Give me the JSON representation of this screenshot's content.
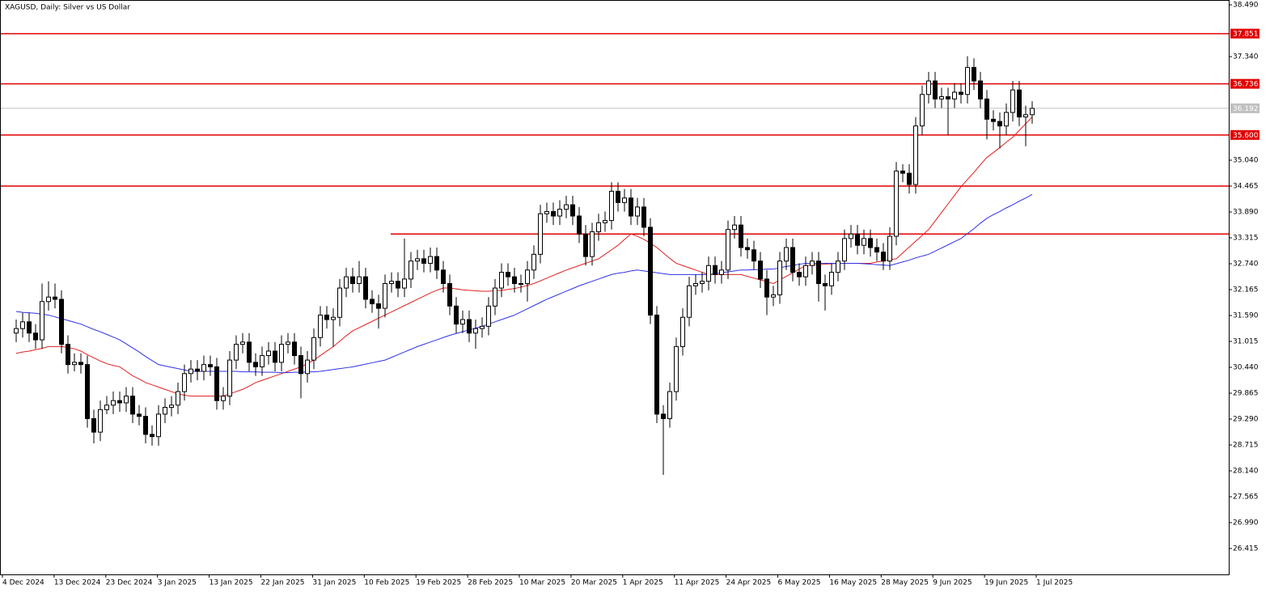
{
  "chart_data": {
    "type": "candlestick",
    "title": "XAGUSD, Daily:  Silver vs US Dollar",
    "ylim": [
      25.84,
      38.598
    ],
    "yticks": [
      {
        "value": 38.49,
        "label": "38.490"
      },
      {
        "value": 37.34,
        "label": "37.340"
      },
      {
        "value": 35.04,
        "label": "35.040"
      },
      {
        "value": 34.465,
        "label": "34.465"
      },
      {
        "value": 33.89,
        "label": "33.890"
      },
      {
        "value": 33.315,
        "label": "33.315"
      },
      {
        "value": 32.74,
        "label": "32.740"
      },
      {
        "value": 32.165,
        "label": "32.165"
      },
      {
        "value": 31.59,
        "label": "31.590"
      },
      {
        "value": 31.015,
        "label": "31.015"
      },
      {
        "value": 30.44,
        "label": "30.440"
      },
      {
        "value": 29.865,
        "label": "29.865"
      },
      {
        "value": 29.29,
        "label": "29.290"
      },
      {
        "value": 28.715,
        "label": "28.715"
      },
      {
        "value": 28.14,
        "label": "28.140"
      },
      {
        "value": 27.565,
        "label": "27.565"
      },
      {
        "value": 26.99,
        "label": "26.990"
      },
      {
        "value": 26.415,
        "label": "26.415"
      }
    ],
    "xlabels": [
      "4 Dec 2024",
      "13 Dec 2024",
      "23 Dec 2024",
      "3 Jan 2025",
      "13 Jan 2025",
      "22 Jan 2025",
      "31 Jan 2025",
      "10 Feb 2025",
      "19 Feb 2025",
      "28 Feb 2025",
      "10 Mar 2025",
      "20 Mar 2025",
      "1 Apr 2025",
      "11 Apr 2025",
      "24 Apr 2025",
      "6 May 2025",
      "16 May 2025",
      "28 May 2025",
      "9 Jun 2025",
      "19 Jun 2025",
      "1 Jul 2025"
    ],
    "levels": [
      {
        "value": 37.851,
        "label": "37.851",
        "color": "#e00000"
      },
      {
        "value": 36.736,
        "label": "36.736",
        "color": "#e00000"
      },
      {
        "value": 35.6,
        "label": "35.600",
        "color": "#e00000"
      },
      {
        "value": 34.465,
        "color": "#e00000"
      }
    ],
    "partial_level": {
      "value": 33.4,
      "color": "#e00000"
    },
    "current_price": {
      "value": 36.192,
      "label": "36.192",
      "color": "#c0c0c0"
    },
    "open": [
      31.2,
      31.3,
      31.45,
      31.2,
      31.05,
      31.9,
      32.0,
      31.95,
      30.95,
      30.5,
      30.55,
      30.5,
      29.3,
      29.0,
      29.5,
      29.6,
      29.7,
      29.65,
      29.8,
      29.4,
      29.35,
      28.95,
      28.9,
      29.4,
      29.55,
      29.6,
      29.9,
      30.3,
      30.4,
      30.35,
      30.5,
      30.45,
      29.7,
      29.8,
      30.6,
      30.95,
      31.0,
      30.55,
      30.45,
      30.7,
      30.8,
      30.55,
      30.95,
      31.0,
      30.7,
      30.3,
      30.6,
      31.1,
      31.6,
      31.5,
      31.55,
      32.2,
      32.45,
      32.3,
      32.45,
      31.95,
      31.85,
      31.75,
      32.3,
      32.35,
      32.2,
      32.4,
      32.8,
      32.85,
      32.75,
      32.9,
      32.6,
      32.3,
      31.8,
      31.4,
      31.5,
      31.2,
      31.3,
      31.35,
      31.8,
      32.2,
      32.55,
      32.45,
      32.3,
      32.3,
      32.6,
      32.95,
      33.85,
      33.9,
      33.8,
      33.95,
      34.05,
      33.8,
      33.4,
      32.9,
      33.45,
      33.65,
      33.7,
      34.35,
      34.1,
      34.2,
      33.8,
      34.0,
      33.55,
      31.6,
      29.4,
      29.3,
      29.9,
      30.9,
      31.55,
      32.25,
      32.3,
      32.35,
      32.7,
      32.5,
      32.6,
      33.5,
      33.6,
      33.1,
      33.05,
      32.8,
      32.4,
      32.0,
      32.05,
      32.8,
      33.1,
      32.55,
      32.45,
      32.7,
      32.8,
      32.3,
      32.25,
      32.55,
      32.8,
      33.3,
      33.4,
      33.15,
      33.3,
      33.1,
      33.0,
      32.8,
      33.35,
      34.8,
      34.75,
      34.5,
      35.8,
      36.5,
      36.8,
      36.4,
      36.45,
      36.4,
      36.55,
      36.5,
      37.1,
      36.8,
      36.4,
      35.95,
      35.9,
      35.8,
      36.1,
      36.6,
      36.0,
      36.05
    ],
    "high": [
      31.5,
      31.65,
      31.65,
      31.4,
      32.3,
      32.35,
      32.3,
      32.15,
      31.15,
      30.75,
      30.75,
      30.7,
      29.5,
      29.7,
      29.8,
      29.9,
      29.9,
      30.0,
      30.0,
      29.6,
      29.55,
      29.15,
      29.6,
      29.75,
      29.8,
      30.1,
      30.5,
      30.6,
      30.6,
      30.7,
      30.7,
      30.65,
      30.0,
      30.8,
      31.15,
      31.2,
      31.2,
      30.75,
      30.9,
      31.0,
      31.0,
      31.15,
      31.2,
      31.2,
      30.9,
      30.8,
      31.3,
      31.8,
      31.8,
      31.75,
      32.4,
      32.65,
      32.65,
      32.8,
      32.65,
      32.15,
      32.05,
      32.5,
      32.55,
      32.55,
      33.3,
      33.0,
      33.05,
      33.05,
      33.1,
      33.1,
      32.8,
      32.5,
      32.0,
      31.7,
      31.7,
      31.5,
      31.55,
      32.0,
      32.4,
      32.75,
      32.75,
      32.65,
      32.5,
      32.8,
      33.15,
      34.05,
      34.1,
      34.1,
      34.15,
      34.25,
      34.25,
      34.0,
      33.6,
      33.65,
      33.85,
      33.9,
      34.55,
      34.55,
      34.4,
      34.4,
      34.2,
      34.2,
      33.75,
      31.8,
      29.6,
      30.1,
      31.1,
      31.75,
      32.45,
      32.5,
      32.55,
      32.9,
      32.9,
      32.8,
      33.7,
      33.8,
      33.8,
      33.3,
      33.25,
      33.0,
      32.6,
      32.25,
      33.0,
      33.3,
      33.3,
      32.75,
      32.9,
      33.0,
      33.0,
      32.5,
      32.75,
      33.0,
      33.5,
      33.6,
      33.6,
      33.5,
      33.5,
      33.3,
      33.2,
      33.55,
      35.0,
      34.95,
      34.95,
      36.0,
      36.7,
      37.0,
      37.0,
      36.65,
      36.65,
      36.75,
      36.75,
      37.35,
      37.3,
      37.0,
      36.6,
      36.15,
      36.1,
      36.3,
      36.8,
      36.8,
      36.25,
      36.35
    ],
    "low": [
      31.0,
      31.1,
      31.0,
      30.85,
      30.85,
      31.7,
      31.75,
      30.75,
      30.3,
      30.35,
      30.3,
      29.1,
      28.75,
      28.8,
      29.4,
      29.4,
      29.45,
      29.45,
      29.2,
      29.15,
      28.75,
      28.7,
      28.7,
      29.2,
      29.35,
      29.4,
      29.7,
      30.1,
      30.15,
      30.15,
      30.25,
      29.5,
      29.5,
      29.6,
      30.4,
      30.75,
      30.35,
      30.25,
      30.25,
      30.5,
      30.35,
      30.35,
      30.75,
      30.5,
      29.75,
      30.1,
      30.4,
      30.9,
      31.3,
      30.9,
      31.35,
      32.0,
      32.1,
      32.1,
      31.75,
      31.65,
      31.3,
      31.55,
      32.1,
      32.0,
      32.0,
      32.2,
      32.6,
      32.55,
      32.55,
      32.4,
      32.1,
      31.6,
      31.2,
      31.2,
      31.0,
      30.85,
      31.1,
      31.15,
      31.6,
      32.0,
      32.25,
      32.1,
      32.1,
      31.9,
      32.4,
      32.75,
      33.65,
      33.6,
      33.6,
      33.75,
      33.6,
      33.2,
      32.7,
      32.7,
      33.25,
      33.45,
      33.5,
      33.9,
      33.9,
      33.6,
      33.6,
      33.35,
      31.4,
      29.2,
      28.05,
      29.1,
      29.7,
      30.7,
      31.35,
      32.05,
      32.1,
      32.15,
      32.3,
      32.3,
      32.4,
      33.3,
      32.9,
      32.85,
      32.6,
      32.2,
      31.6,
      31.8,
      31.85,
      32.6,
      32.35,
      32.25,
      32.25,
      32.5,
      31.9,
      31.7,
      32.05,
      32.35,
      32.6,
      33.1,
      32.95,
      32.95,
      32.9,
      32.8,
      32.6,
      32.6,
      33.15,
      34.55,
      34.3,
      34.3,
      35.6,
      36.3,
      36.2,
      36.2,
      35.6,
      36.2,
      36.3,
      36.3,
      36.6,
      36.2,
      35.5,
      35.7,
      35.3,
      35.6,
      35.9,
      35.8,
      35.35,
      35.85
    ],
    "close": [
      31.3,
      31.45,
      31.2,
      31.05,
      31.9,
      32.0,
      31.95,
      30.95,
      30.5,
      30.55,
      30.5,
      29.3,
      29.0,
      29.5,
      29.6,
      29.7,
      29.65,
      29.8,
      29.4,
      29.35,
      28.95,
      28.9,
      29.4,
      29.55,
      29.6,
      29.9,
      30.3,
      30.4,
      30.35,
      30.5,
      30.45,
      29.7,
      29.8,
      30.6,
      30.95,
      31.0,
      30.55,
      30.45,
      30.7,
      30.8,
      30.55,
      30.95,
      31.0,
      30.7,
      30.3,
      30.6,
      31.1,
      31.6,
      31.5,
      31.55,
      32.2,
      32.45,
      32.3,
      32.45,
      31.95,
      31.85,
      31.75,
      32.3,
      32.35,
      32.2,
      32.4,
      32.8,
      32.85,
      32.75,
      32.9,
      32.6,
      32.3,
      31.8,
      31.4,
      31.5,
      31.2,
      31.3,
      31.35,
      31.8,
      32.2,
      32.55,
      32.45,
      32.3,
      32.3,
      32.6,
      32.95,
      33.85,
      33.9,
      33.8,
      33.95,
      34.05,
      33.8,
      33.4,
      32.9,
      33.45,
      33.65,
      33.7,
      34.35,
      34.1,
      34.2,
      33.8,
      34.0,
      33.55,
      31.6,
      29.4,
      29.3,
      29.9,
      30.9,
      31.55,
      32.25,
      32.3,
      32.35,
      32.7,
      32.5,
      32.6,
      33.5,
      33.6,
      33.1,
      33.05,
      32.8,
      32.4,
      32.0,
      32.05,
      32.8,
      33.1,
      32.55,
      32.45,
      32.7,
      32.8,
      32.3,
      32.25,
      32.55,
      32.8,
      33.3,
      33.4,
      33.15,
      33.3,
      33.1,
      33.0,
      32.8,
      33.35,
      34.8,
      34.75,
      34.5,
      35.8,
      36.5,
      36.8,
      36.4,
      36.45,
      36.4,
      36.55,
      36.5,
      37.1,
      36.8,
      36.4,
      35.95,
      35.9,
      35.8,
      36.1,
      36.6,
      36.0,
      36.05,
      36.19
    ],
    "series": [
      {
        "color": "#e02020",
        "values": [
          30.75,
          30.78,
          30.8,
          30.83,
          30.86,
          30.9,
          30.9,
          30.9,
          30.88,
          30.85,
          30.8,
          30.72,
          30.65,
          30.58,
          30.52,
          30.48,
          30.45,
          30.35,
          30.25,
          30.18,
          30.1,
          30.05,
          30.0,
          29.95,
          29.9,
          29.85,
          29.82,
          29.8,
          29.8,
          29.8,
          29.8,
          29.8,
          29.8,
          29.85,
          29.9,
          29.95,
          30.02,
          30.1,
          30.15,
          30.2,
          30.25,
          30.3,
          30.35,
          30.4,
          30.45,
          30.52,
          30.6,
          30.7,
          30.8,
          30.9,
          31.02,
          31.14,
          31.25,
          31.32,
          31.39,
          31.46,
          31.53,
          31.6,
          31.67,
          31.74,
          31.81,
          31.88,
          31.95,
          32.02,
          32.09,
          32.15,
          32.2,
          32.2,
          32.18,
          32.16,
          32.15,
          32.14,
          32.13,
          32.13,
          32.14,
          32.15,
          32.17,
          32.19,
          32.22,
          32.26,
          32.3,
          32.36,
          32.42,
          32.48,
          32.54,
          32.6,
          32.65,
          32.7,
          32.75,
          32.8,
          32.85,
          32.95,
          33.05,
          33.15,
          33.28,
          33.4,
          33.35,
          33.28,
          33.2,
          33.1,
          32.98,
          32.86,
          32.75,
          32.7,
          32.65,
          32.6,
          32.55,
          32.5,
          32.5,
          32.5,
          32.5,
          32.5,
          32.5,
          32.46,
          32.42,
          32.38,
          32.34,
          32.3,
          32.38,
          32.46,
          32.54,
          32.62,
          32.7,
          32.71,
          32.72,
          32.73,
          32.74,
          32.75,
          32.75,
          32.75,
          32.75,
          32.75,
          32.75,
          32.78,
          32.8,
          32.83,
          32.85,
          32.98,
          33.11,
          33.24,
          33.37,
          33.5,
          33.69,
          33.88,
          34.07,
          34.26,
          34.45,
          34.61,
          34.77,
          34.94,
          35.1,
          35.21,
          35.32,
          35.44,
          35.55,
          35.7,
          35.85,
          36.0
        ]
      },
      {
        "color": "#3030e8",
        "values": [
          31.68,
          31.66,
          31.65,
          31.64,
          31.62,
          31.6,
          31.56,
          31.52,
          31.48,
          31.44,
          31.4,
          31.34,
          31.28,
          31.23,
          31.17,
          31.11,
          31.05,
          30.96,
          30.87,
          30.78,
          30.68,
          30.59,
          30.5,
          30.47,
          30.44,
          30.41,
          30.38,
          30.35,
          30.35,
          30.35,
          30.35,
          30.35,
          30.35,
          30.35,
          30.35,
          30.34,
          30.34,
          30.34,
          30.33,
          30.33,
          30.33,
          30.32,
          30.32,
          30.33,
          30.33,
          30.34,
          30.34,
          30.35,
          30.37,
          30.39,
          30.41,
          30.43,
          30.45,
          30.48,
          30.51,
          30.54,
          30.57,
          30.6,
          30.66,
          30.72,
          30.78,
          30.84,
          30.9,
          30.95,
          31.0,
          31.05,
          31.1,
          31.15,
          31.19,
          31.23,
          31.27,
          31.31,
          31.35,
          31.4,
          31.45,
          31.5,
          31.55,
          31.6,
          31.67,
          31.74,
          31.81,
          31.88,
          31.95,
          32.01,
          32.07,
          32.13,
          32.19,
          32.25,
          32.3,
          32.35,
          32.4,
          32.45,
          32.5,
          32.53,
          32.55,
          32.58,
          32.6,
          32.58,
          32.56,
          32.54,
          32.52,
          32.5,
          32.5,
          32.5,
          32.5,
          32.5,
          32.5,
          32.5,
          32.52,
          32.54,
          32.56,
          32.58,
          32.6,
          32.6,
          32.61,
          32.61,
          32.62,
          32.62,
          32.65,
          32.68,
          32.7,
          32.73,
          32.75,
          32.75,
          32.75,
          32.75,
          32.75,
          32.75,
          32.75,
          32.75,
          32.75,
          32.74,
          32.73,
          32.72,
          32.71,
          32.7,
          32.74,
          32.78,
          32.82,
          32.87,
          32.91,
          32.95,
          33.02,
          33.09,
          33.16,
          33.23,
          33.3,
          33.41,
          33.52,
          33.64,
          33.75,
          33.83,
          33.9,
          33.98,
          34.05,
          34.13,
          34.2,
          34.28
        ]
      }
    ]
  }
}
